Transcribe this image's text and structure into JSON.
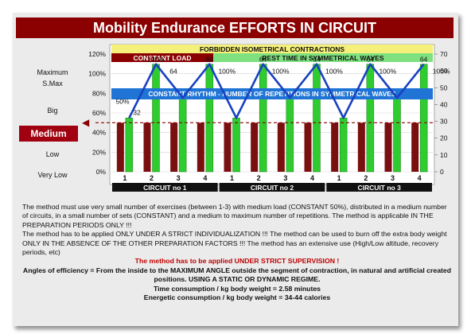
{
  "title": "Mobility Endurance EFFORTS IN CIRCUIT",
  "side_labels": {
    "maximum": "Maximum",
    "smax": "S.Max",
    "big": "Big",
    "medium": "Medium",
    "low": "Low",
    "very_low": "Very Low"
  },
  "banners": {
    "forbidden": "FORBIDDEN ISOMETRICAL CONTRACTIONS",
    "constant_load": "CONSTANT LOAD",
    "rest_time": "REST TIME IN SYMMETRICAL WAVES",
    "constant_rhythm": "CONSTANT RHYTHM - NUMBER OF REPETITIONS IN SYMMETRICAL WAVES"
  },
  "colors": {
    "title_bg": "#8b0000",
    "bar_green": "#2ecc2e",
    "bar_red": "#7a0f0f",
    "wave_line": "#1840c0",
    "rhythm_banner": "#1f74d6",
    "forbidden_banner": "#f5f07a",
    "rest_banner": "#7fe07f",
    "circuit_bar": "#111111"
  },
  "chart_data": {
    "type": "bar",
    "title": "Mobility Endurance EFFORTS IN CIRCUIT",
    "left_axis_ticks": [
      "0%",
      "20%",
      "40%",
      "60%",
      "80%",
      "100%",
      "120%"
    ],
    "right_axis_ticks": [
      "0",
      "10",
      "20",
      "30",
      "40",
      "50",
      "60",
      "70"
    ],
    "ylim_left": [
      0,
      120
    ],
    "ylim_right": [
      0,
      70
    ],
    "load_percent": 50,
    "categories": [
      "1",
      "2",
      "3",
      "4",
      "1",
      "2",
      "3",
      "4",
      "1",
      "2",
      "3",
      "4"
    ],
    "circuits": [
      "CIRCUIT no 1",
      "CIRCUIT no 2",
      "CIRCUIT no 3"
    ],
    "series": [
      {
        "name": "CONSTANT LOAD",
        "values": [
          50,
          50,
          50,
          50,
          50,
          50,
          50,
          50,
          50,
          50,
          50,
          50
        ]
      },
      {
        "values": [
          32,
          64,
          44,
          64,
          32,
          64,
          44,
          64,
          32,
          64,
          44,
          64
        ]
      }
    ],
    "annotations": [
      "50%",
      "32",
      "100%",
      "64",
      "64",
      "100%",
      "64",
      "100%",
      "64",
      "100%",
      "64",
      "100%",
      "64",
      "100%",
      "64"
    ],
    "grid": true
  },
  "body_text": {
    "p1": "The method must use very small number of exercises (between 1-3) with medium load (CONSTANT 50%), distributed in a medium number of circuits,  in a small number of sets (CONSTANT) and a medium to maximum number of repetitions. The method is applicable IN THE PREPARATION PERIODS ONLY !!!",
    "p2": "The method has to be applied ONLY UNDER A STRICT INDIVIDUALIZATION !!! The method can be used to burn off the extra body weight ONLY IN THE ABSENCE OF THE OTHER PREPARATION FACTORS !!! The method has an extensive use (High/Low altitude, recovery periods, etc)",
    "p3": "The method has to be applied UNDER STRICT SUPERVISION !",
    "p4": "Angles of efficiency = From the inside to the MAXIMUM ANGLE outside the segment of contraction, in natural and artificial created positions. USING A STATIC OR DYNAMIC REGIME.",
    "p5": "Time consumption /  kg body weight =  2.58   minutes",
    "p6": "Energetic consumption /  kg body weight =   34-44  calories"
  }
}
